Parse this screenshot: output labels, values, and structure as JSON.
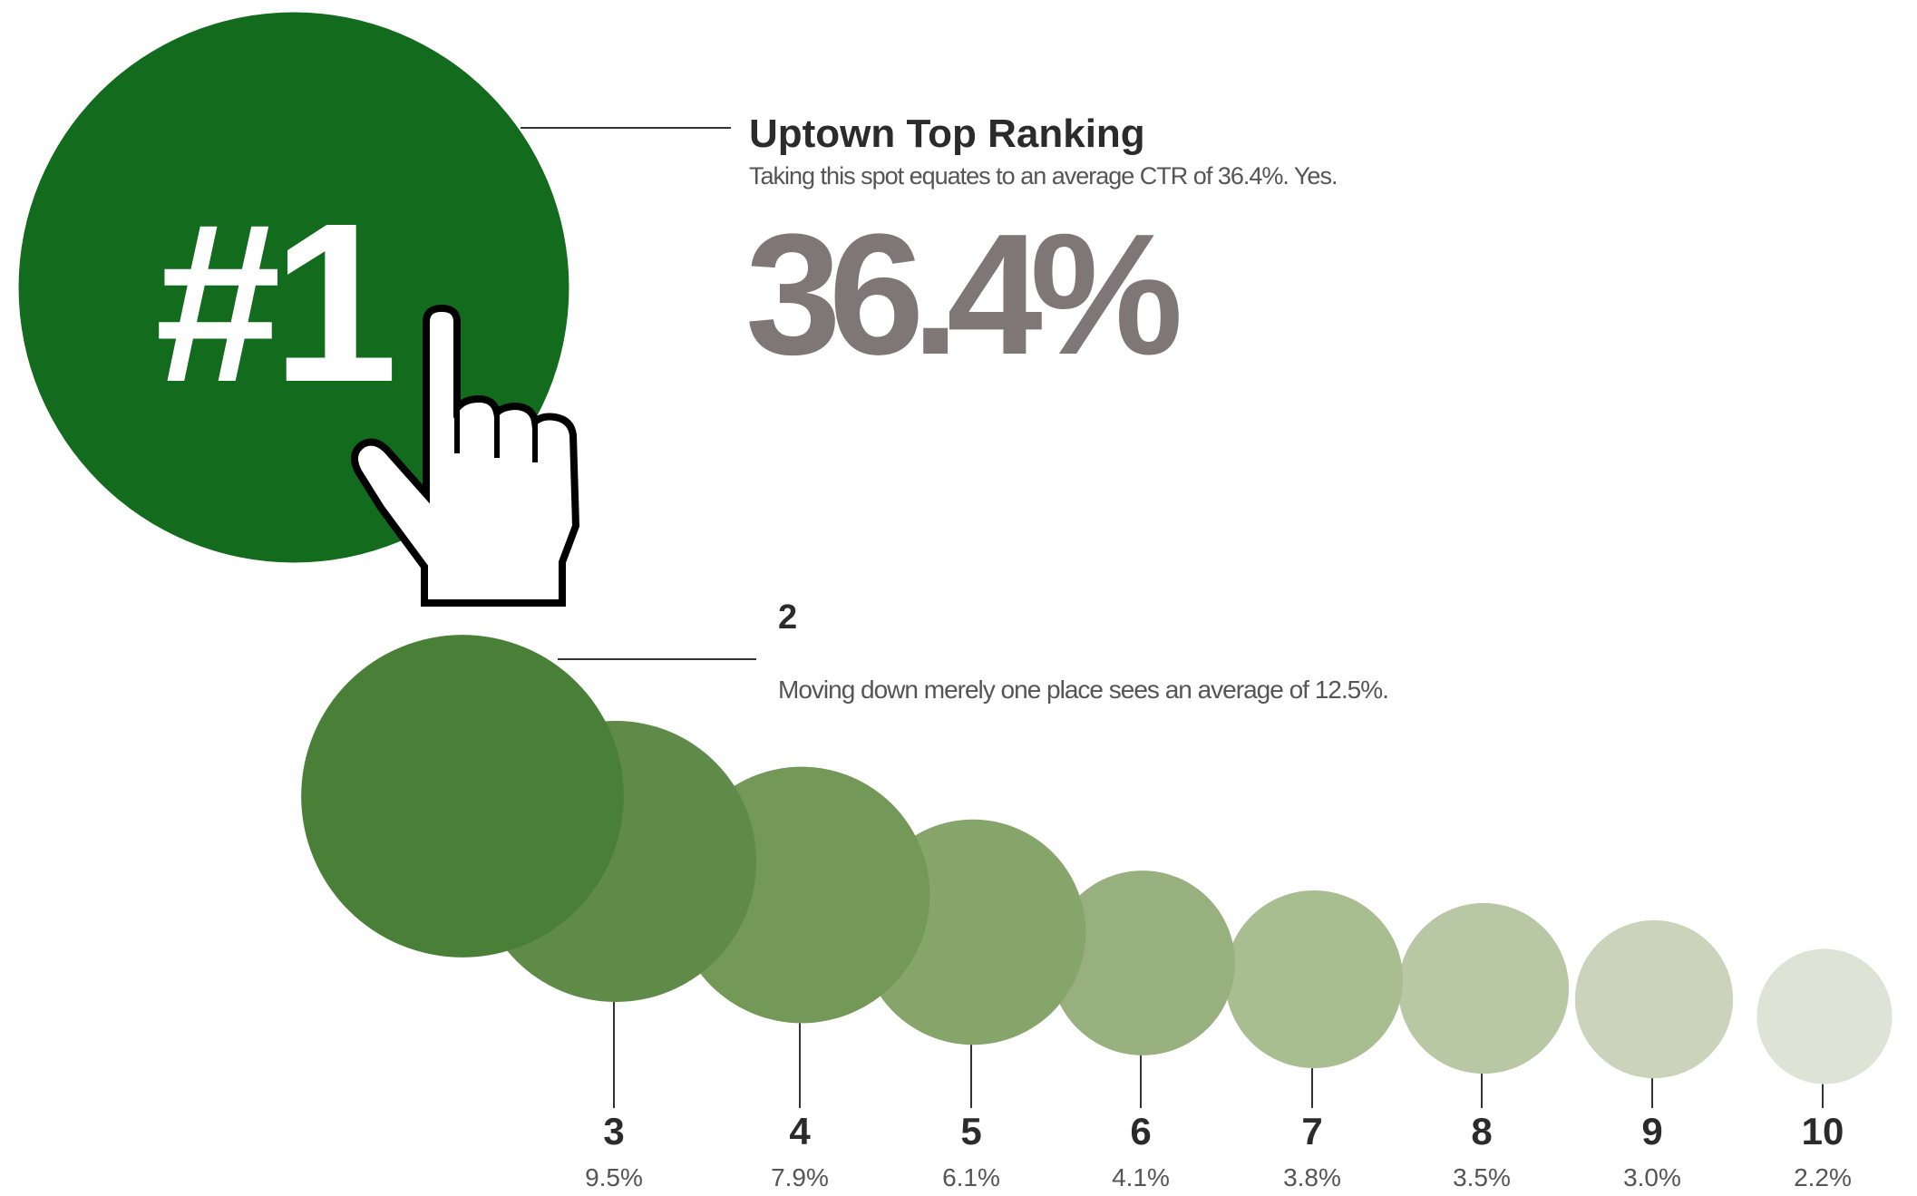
{
  "chart_data": {
    "type": "bubble",
    "title": "Uptown Top Ranking",
    "subtitle": "Taking this spot equates to an average CTR of 36.4%. Yes.",
    "annotations": [
      "Moving down merely one place sees an average of 12.5%."
    ],
    "categories": [
      "#1",
      "2",
      "3",
      "4",
      "5",
      "6",
      "7",
      "8",
      "9",
      "10"
    ],
    "values": [
      36.4,
      12.5,
      9.5,
      7.9,
      6.1,
      4.1,
      3.8,
      3.5,
      3.0,
      2.2
    ],
    "value_labels": [
      "36.4%",
      null,
      "9.5%",
      "7.9%",
      "6.1%",
      "4.1%",
      "3.8%",
      "3.5%",
      "3.0%",
      "2.2%"
    ],
    "colors": [
      "#136b1e",
      "#4a7f38",
      "#5f8a48",
      "#739858",
      "#86a56a",
      "#98b07e",
      "#a8bd90",
      "#b8c8a4",
      "#cbd4bb",
      "#dfe3d6"
    ]
  }
}
